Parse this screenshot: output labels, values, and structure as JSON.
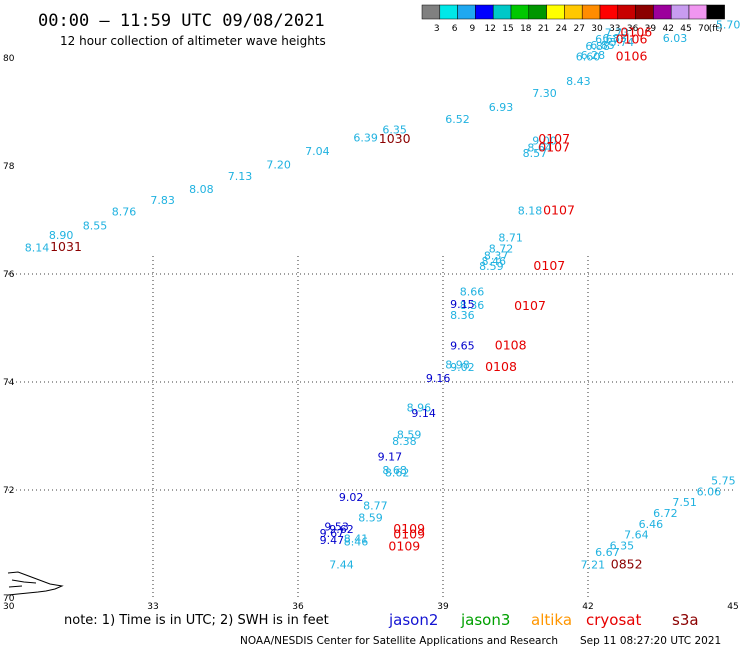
{
  "title": "00:00 – 11:59 UTC 09/08/2021",
  "subtitle": "12 hour collection of altimeter wave heights",
  "colorbar": {
    "colors": [
      "#808080",
      "#00e8e8",
      "#1fa8f0",
      "#0000ff",
      "#00c8c8",
      "#00c800",
      "#009600",
      "#ffff00",
      "#ffc800",
      "#ff8c00",
      "#ff0000",
      "#c80000",
      "#8b0000",
      "#9c009c",
      "#c89cf0",
      "#f096f0",
      "#000000"
    ],
    "labels": [
      "3",
      "6",
      "9",
      "12",
      "15",
      "18",
      "21",
      "24",
      "27",
      "30",
      "33",
      "36",
      "39",
      "42",
      "45",
      "70"
    ],
    "unit": "(ft)"
  },
  "note": "note: 1) Time is in UTC; 2) SWH is in feet",
  "legend": [
    {
      "name": "jason2",
      "color": "#1414d2"
    },
    {
      "name": "jason3",
      "color": "#00a000"
    },
    {
      "name": "altika",
      "color": "#ff9600"
    },
    {
      "name": "cryosat",
      "color": "#e60000"
    },
    {
      "name": "s3a",
      "color": "#8b0000"
    }
  ],
  "credit": "NOAA/NESDIS Center for Satellite Applications and Research",
  "timestamp": "Sep 11 08:27:20 UTC 2021",
  "chart_data": {
    "type": "scatter",
    "xlim": [
      30,
      45
    ],
    "ylim": [
      70,
      80
    ],
    "x_ticks": [
      30,
      33,
      36,
      39,
      42,
      45
    ],
    "y_ticks": [
      70,
      72,
      74,
      76,
      78,
      80
    ],
    "series": [
      {
        "color": "#20b2e0",
        "points": [
          {
            "x": 30.6,
            "y": 76.42,
            "v": "8.14"
          },
          {
            "x": 31.1,
            "y": 76.65,
            "v": "8.90"
          },
          {
            "x": 31.8,
            "y": 76.82,
            "v": "8.55"
          },
          {
            "x": 32.4,
            "y": 77.08,
            "v": "8.76"
          },
          {
            "x": 33.2,
            "y": 77.3,
            "v": "7.83"
          },
          {
            "x": 34.0,
            "y": 77.5,
            "v": "8.08"
          },
          {
            "x": 34.8,
            "y": 77.74,
            "v": "7.13"
          },
          {
            "x": 35.6,
            "y": 77.95,
            "v": "7.20"
          },
          {
            "x": 36.4,
            "y": 78.2,
            "v": "7.04"
          },
          {
            "x": 37.4,
            "y": 78.45,
            "v": "6.39"
          },
          {
            "x": 38.0,
            "y": 78.6,
            "v": "6.35"
          },
          {
            "x": 39.3,
            "y": 78.8,
            "v": "6.52"
          },
          {
            "x": 40.2,
            "y": 79.02,
            "v": "6.93"
          },
          {
            "x": 41.1,
            "y": 79.28,
            "v": "7.30"
          },
          {
            "x": 41.8,
            "y": 79.5,
            "v": "8.43"
          },
          {
            "x": 42.0,
            "y": 79.95,
            "v": "6.60"
          },
          {
            "x": 42.2,
            "y": 80.15,
            "v": "6.88"
          },
          {
            "x": 42.4,
            "y": 80.28,
            "v": "6.67"
          },
          {
            "x": 42.6,
            "y": 80.4,
            "v": "7.73"
          },
          {
            "x": 42.7,
            "y": 80.22,
            "v": "5.74"
          },
          {
            "x": 42.55,
            "y": 80.3,
            "v": "6.83"
          },
          {
            "x": 42.3,
            "y": 80.17,
            "v": "6.85"
          },
          {
            "x": 42.1,
            "y": 79.98,
            "v": "6.28"
          },
          {
            "x": 43.8,
            "y": 80.3,
            "v": "6.03"
          },
          {
            "x": 44.9,
            "y": 80.55,
            "v": "5.70"
          },
          {
            "x": 41.1,
            "y": 78.4,
            "v": "9.00"
          },
          {
            "x": 41.0,
            "y": 78.27,
            "v": "8.64"
          },
          {
            "x": 40.9,
            "y": 78.17,
            "v": "8.57"
          },
          {
            "x": 40.8,
            "y": 77.1,
            "v": "8.18"
          },
          {
            "x": 40.4,
            "y": 76.6,
            "v": "8.71"
          },
          {
            "x": 40.2,
            "y": 76.4,
            "v": "8.72"
          },
          {
            "x": 40.1,
            "y": 76.27,
            "v": "8.37"
          },
          {
            "x": 40.05,
            "y": 76.17,
            "v": "8.46"
          },
          {
            "x": 40.0,
            "y": 76.07,
            "v": "8.59"
          },
          {
            "x": 39.6,
            "y": 75.6,
            "v": "8.66"
          },
          {
            "x": 39.4,
            "y": 75.17,
            "v": "8.36"
          },
          {
            "x": 39.6,
            "y": 75.35,
            "v": "8.36"
          },
          {
            "x": 39.3,
            "y": 74.25,
            "v": "8.98"
          },
          {
            "x": 39.4,
            "y": 74.2,
            "v": "9.02"
          },
          {
            "x": 38.5,
            "y": 73.45,
            "v": "8.96"
          },
          {
            "x": 38.3,
            "y": 72.95,
            "v": "8.59"
          },
          {
            "x": 38.2,
            "y": 72.83,
            "v": "8.38"
          },
          {
            "x": 38.0,
            "y": 72.3,
            "v": "8.68"
          },
          {
            "x": 38.05,
            "y": 72.25,
            "v": "8.62"
          },
          {
            "x": 37.6,
            "y": 71.64,
            "v": "8.77"
          },
          {
            "x": 37.5,
            "y": 71.42,
            "v": "8.59"
          },
          {
            "x": 37.2,
            "y": 71.03,
            "v": "8.41"
          },
          {
            "x": 37.2,
            "y": 70.97,
            "v": "8.46"
          },
          {
            "x": 36.9,
            "y": 70.55,
            "v": "7.44"
          },
          {
            "x": 42.1,
            "y": 70.55,
            "v": "7.21"
          },
          {
            "x": 42.4,
            "y": 70.78,
            "v": "6.67"
          },
          {
            "x": 42.7,
            "y": 70.9,
            "v": "6.35"
          },
          {
            "x": 43.0,
            "y": 71.1,
            "v": "7.64"
          },
          {
            "x": 43.3,
            "y": 71.3,
            "v": "6.46"
          },
          {
            "x": 43.6,
            "y": 71.5,
            "v": "6.72"
          },
          {
            "x": 44.0,
            "y": 71.7,
            "v": "7.51"
          },
          {
            "x": 44.5,
            "y": 71.9,
            "v": "6.06"
          },
          {
            "x": 44.8,
            "y": 72.1,
            "v": "5.75"
          }
        ]
      },
      {
        "color": "#0000cc",
        "points": [
          {
            "x": 39.4,
            "y": 75.37,
            "v": "9.15"
          },
          {
            "x": 39.4,
            "y": 74.6,
            "v": "9.65"
          },
          {
            "x": 38.9,
            "y": 74.0,
            "v": "9.16"
          },
          {
            "x": 38.6,
            "y": 73.35,
            "v": "9.14"
          },
          {
            "x": 37.9,
            "y": 72.55,
            "v": "9.17"
          },
          {
            "x": 37.1,
            "y": 71.8,
            "v": "9.02"
          },
          {
            "x": 36.8,
            "y": 71.25,
            "v": "9.53"
          },
          {
            "x": 36.9,
            "y": 71.2,
            "v": "9.62"
          },
          {
            "x": 36.7,
            "y": 71.13,
            "v": "9.67"
          },
          {
            "x": 36.7,
            "y": 71.0,
            "v": "9.47"
          }
        ]
      }
    ],
    "times": [
      {
        "x": 31.2,
        "y": 76.43,
        "t": "1031",
        "color": "#8b0000"
      },
      {
        "x": 38.0,
        "y": 78.43,
        "t": "1030",
        "color": "#8b0000"
      },
      {
        "x": 43.0,
        "y": 80.4,
        "t": "0106",
        "color": "#e60000"
      },
      {
        "x": 42.9,
        "y": 80.27,
        "t": "0106",
        "color": "#e60000"
      },
      {
        "x": 42.9,
        "y": 79.95,
        "t": "0106",
        "color": "#e60000"
      },
      {
        "x": 41.3,
        "y": 78.43,
        "t": "0107",
        "color": "#e60000"
      },
      {
        "x": 41.3,
        "y": 78.27,
        "t": "0107",
        "color": "#e60000"
      },
      {
        "x": 41.4,
        "y": 77.1,
        "t": "0107",
        "color": "#e60000"
      },
      {
        "x": 41.2,
        "y": 76.07,
        "t": "0107",
        "color": "#e60000"
      },
      {
        "x": 40.8,
        "y": 75.33,
        "t": "0107",
        "color": "#e60000"
      },
      {
        "x": 40.4,
        "y": 74.6,
        "t": "0108",
        "color": "#e60000"
      },
      {
        "x": 40.2,
        "y": 74.2,
        "t": "0108",
        "color": "#e60000"
      },
      {
        "x": 38.3,
        "y": 71.2,
        "t": "0109",
        "color": "#e60000"
      },
      {
        "x": 38.3,
        "y": 71.1,
        "t": "0109",
        "color": "#e60000"
      },
      {
        "x": 38.2,
        "y": 70.88,
        "t": "0109",
        "color": "#e60000"
      },
      {
        "x": 42.8,
        "y": 70.55,
        "t": "0852",
        "color": "#8b0000"
      }
    ]
  }
}
